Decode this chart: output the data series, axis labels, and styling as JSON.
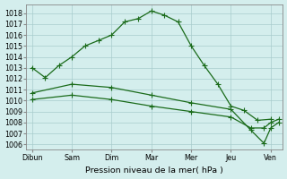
{
  "xlabel": "Pression niveau de la mer( hPa )",
  "xtick_labels": [
    "Dibun",
    "Sam",
    "Dim",
    "Mar",
    "Mer",
    "Jeu",
    "Ven"
  ],
  "ylim": [
    1005.5,
    1018.8
  ],
  "yticks": [
    1006,
    1007,
    1008,
    1009,
    1010,
    1011,
    1012,
    1013,
    1014,
    1015,
    1016,
    1017,
    1018
  ],
  "xlim": [
    -0.15,
    6.3
  ],
  "background_color": "#d4eeed",
  "grid_color": "#a8cccc",
  "line_color": "#1a6b1a",
  "upper_line_x": [
    0,
    0.33,
    0.67,
    1.0,
    1.33,
    1.67,
    2.0,
    2.33,
    2.67,
    3.0,
    3.33,
    3.67,
    4.0,
    4.33,
    4.67,
    5.0,
    5.33,
    5.67,
    6.0
  ],
  "upper_line_y": [
    1013.0,
    1012.1,
    1013.2,
    1014.0,
    1015.0,
    1015.5,
    1016.0,
    1017.2,
    1017.5,
    1018.2,
    1017.8,
    1017.2,
    1015.0,
    1013.2,
    1011.5,
    1009.5,
    1009.1,
    1008.2,
    1008.3
  ],
  "lower1_x": [
    0,
    1.0,
    2.0,
    3.0,
    4.0,
    5.0,
    5.5,
    5.83,
    6.0,
    6.2
  ],
  "lower1_y": [
    1010.7,
    1011.5,
    1011.2,
    1010.5,
    1009.8,
    1009.2,
    1007.3,
    1006.1,
    1007.5,
    1008.0
  ],
  "lower2_x": [
    0,
    1.0,
    2.0,
    3.0,
    4.0,
    5.0,
    5.5,
    5.83,
    6.0,
    6.2
  ],
  "lower2_y": [
    1010.1,
    1010.5,
    1010.1,
    1009.5,
    1009.0,
    1008.5,
    1007.5,
    1007.5,
    1008.0,
    1008.3
  ]
}
